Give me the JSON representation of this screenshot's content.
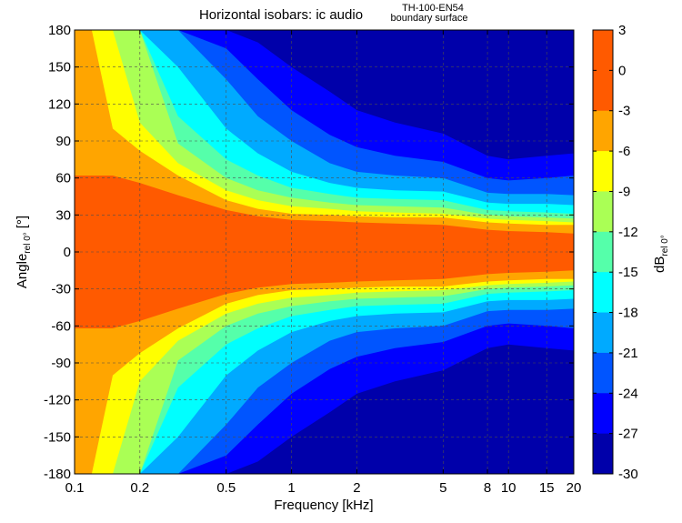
{
  "chart_data": {
    "type": "heatmap",
    "title": "Horizontal isobars: ic audio",
    "subtitle_line1": "TH-100-EN54",
    "subtitle_line2": "boundary surface",
    "xlabel": "Frequency [kHz]",
    "ylabel_main": "Angle",
    "ylabel_sub": "rel 0°",
    "ylabel_unit": "[°]",
    "xscale": "log",
    "xlim": [
      0.1,
      20
    ],
    "ylim": [
      -180,
      180
    ],
    "grid": true,
    "x_ticks": [
      0.1,
      0.2,
      0.5,
      1,
      2,
      5,
      8,
      10,
      15,
      20
    ],
    "x_tick_labels": [
      "0.1",
      "0.2",
      "0.5",
      "1",
      "2",
      "5",
      "8",
      "10",
      "15",
      "20"
    ],
    "y_ticks": [
      180,
      150,
      120,
      90,
      60,
      30,
      0,
      -30,
      -60,
      -90,
      -120,
      -150,
      -180
    ],
    "y_tick_labels": [
      "180",
      "150",
      "120",
      "90",
      "60",
      "30",
      "0",
      "-30",
      "-60",
      "-90",
      "-120",
      "-150",
      "-180"
    ],
    "colorbar": {
      "label_main": "dB",
      "label_sub": "rel 0°",
      "ticks": [
        3,
        0,
        -3,
        -6,
        -9,
        -12,
        -15,
        -18,
        -21,
        -24,
        -27,
        -30
      ],
      "tick_labels": [
        "3",
        "0",
        "-3",
        "-6",
        "-9",
        "-12",
        "-15",
        "-18",
        "-21",
        "-24",
        "-27",
        "-30"
      ],
      "levels": [
        {
          "range": [
            0,
            3
          ],
          "color": "#ff5a00"
        },
        {
          "range": [
            -3,
            0
          ],
          "color": "#ff5a00"
        },
        {
          "range": [
            -6,
            -3
          ],
          "color": "#ffa500"
        },
        {
          "range": [
            -9,
            -6
          ],
          "color": "#ffff00"
        },
        {
          "range": [
            -12,
            -9
          ],
          "color": "#aaff55"
        },
        {
          "range": [
            -15,
            -12
          ],
          "color": "#55ffaa"
        },
        {
          "range": [
            -18,
            -15
          ],
          "color": "#00ffff"
        },
        {
          "range": [
            -21,
            -18
          ],
          "color": "#00aaff"
        },
        {
          "range": [
            -24,
            -21
          ],
          "color": "#0055ff"
        },
        {
          "range": [
            -27,
            -24
          ],
          "color": "#0000ff"
        },
        {
          "range": [
            -30,
            -27
          ],
          "color": "#0000aa"
        }
      ]
    },
    "isobar_half_widths_deg": {
      "frequencies_khz": [
        0.1,
        0.12,
        0.15,
        0.2,
        0.3,
        0.5,
        0.7,
        1,
        1.5,
        2,
        3,
        5,
        8,
        10,
        15,
        20
      ],
      "contours": [
        {
          "level": -3,
          "angles": [
            62,
            62,
            62,
            56,
            46,
            34,
            29,
            26,
            25,
            24,
            23,
            22,
            18,
            17,
            16,
            15
          ]
        },
        {
          "level": -6,
          "angles": [
            180,
            180,
            100,
            82,
            62,
            42,
            35,
            31,
            30,
            29,
            28,
            28,
            24,
            23,
            22,
            22
          ]
        },
        {
          "level": -9,
          "angles": [
            180,
            180,
            180,
            105,
            72,
            50,
            42,
            37,
            35,
            33,
            32,
            31,
            27,
            26,
            25,
            24
          ]
        },
        {
          "level": -12,
          "angles": [
            180,
            180,
            180,
            180,
            88,
            60,
            50,
            44,
            40,
            38,
            37,
            36,
            30,
            29,
            28,
            27
          ]
        },
        {
          "level": -15,
          "angles": [
            180,
            180,
            180,
            180,
            110,
            75,
            62,
            52,
            47,
            44,
            43,
            42,
            34,
            33,
            32,
            31
          ]
        },
        {
          "level": -18,
          "angles": [
            180,
            180,
            180,
            180,
            150,
            100,
            80,
            65,
            56,
            52,
            50,
            49,
            40,
            39,
            39,
            38
          ]
        },
        {
          "level": -21,
          "angles": [
            180,
            180,
            180,
            180,
            180,
            140,
            110,
            90,
            72,
            65,
            62,
            60,
            48,
            47,
            47,
            46
          ]
        },
        {
          "level": -24,
          "angles": [
            180,
            180,
            180,
            180,
            180,
            165,
            140,
            115,
            95,
            85,
            78,
            73,
            60,
            58,
            60,
            62
          ]
        },
        {
          "level": -27,
          "angles": [
            180,
            180,
            180,
            180,
            180,
            180,
            170,
            150,
            130,
            115,
            105,
            96,
            78,
            75,
            78,
            80
          ]
        }
      ]
    }
  }
}
